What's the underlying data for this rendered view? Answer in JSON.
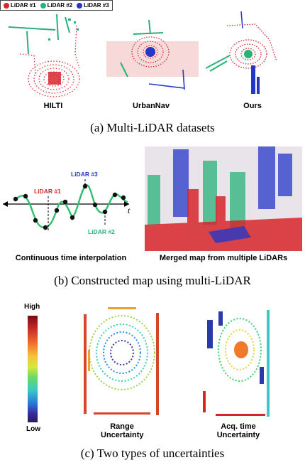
{
  "legend": [
    {
      "label": "LiDAR #1",
      "color": "#d7262b"
    },
    {
      "label": "LiDAR #2",
      "color": "#27b27a"
    },
    {
      "label": "LiDAR #3",
      "color": "#2437c7"
    }
  ],
  "section_a": {
    "datasets": [
      "HILTI",
      "UrbanNav",
      "Ours"
    ],
    "caption": "(a) Multi-LiDAR datasets"
  },
  "section_b": {
    "curve_labels": {
      "l1": "LiDAR #1",
      "l2": "LiDAR #2",
      "l3": "LiDAR #3",
      "t": "t"
    },
    "left_label": "Continuous time interpolation",
    "right_label": "Merged map from multiple LiDARs",
    "caption": "(b) Constructed map using multi-LiDAR"
  },
  "section_c": {
    "colorbar_high": "High",
    "colorbar_low": "Low",
    "range_label_1": "Range",
    "range_label_2": "Uncertainty",
    "acq_label_1": "Acq. time",
    "acq_label_2": "Uncertainty",
    "caption": "(c) Two types of uncertainties"
  }
}
